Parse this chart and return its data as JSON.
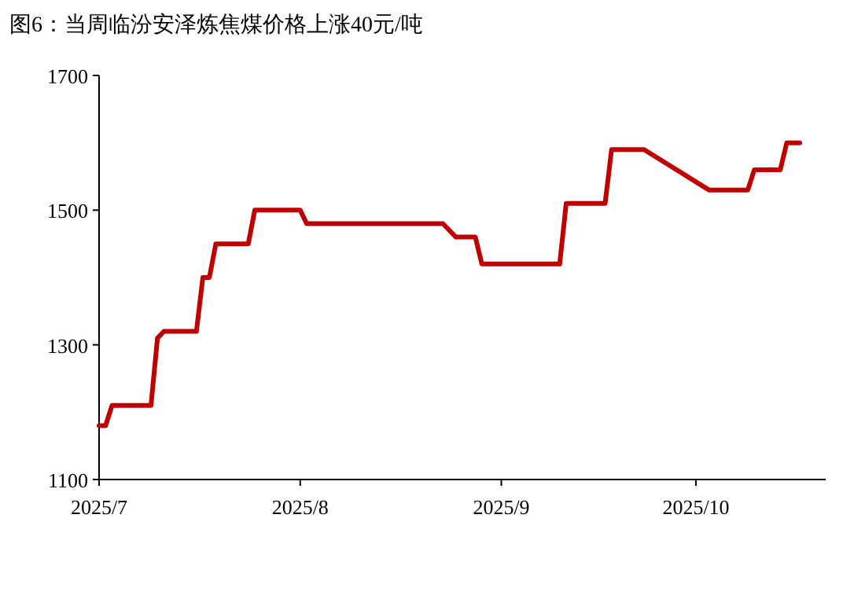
{
  "chart_data": {
    "type": "line",
    "title": "图6：当周临汾安泽炼焦煤价格上涨40元/吨",
    "x": [
      "2025-07-01",
      "2025-07-02",
      "2025-07-03",
      "2025-07-09",
      "2025-07-10",
      "2025-07-11",
      "2025-07-16",
      "2025-07-17",
      "2025-07-18",
      "2025-07-19",
      "2025-07-24",
      "2025-07-25",
      "2025-08-01",
      "2025-08-02",
      "2025-08-23",
      "2025-08-25",
      "2025-08-28",
      "2025-08-29",
      "2025-09-10",
      "2025-09-11",
      "2025-09-17",
      "2025-09-18",
      "2025-09-23",
      "2025-10-03",
      "2025-10-09",
      "2025-10-10",
      "2025-10-14",
      "2025-10-15",
      "2025-10-17"
    ],
    "series": [
      {
        "color": "#c00000",
        "values": [
          1180,
          1180,
          1210,
          1210,
          1310,
          1320,
          1320,
          1400,
          1400,
          1450,
          1450,
          1500,
          1500,
          1480,
          1480,
          1460,
          1460,
          1420,
          1420,
          1510,
          1510,
          1590,
          1590,
          1530,
          1530,
          1560,
          1560,
          1600,
          1600
        ]
      }
    ],
    "xlim": [
      "2025-07-01",
      "2025-10-21"
    ],
    "xticks": [
      {
        "value": "2025-07-01",
        "label": "2025/7"
      },
      {
        "value": "2025-08-01",
        "label": "2025/8"
      },
      {
        "value": "2025-09-01",
        "label": "2025/9"
      },
      {
        "value": "2025-10-01",
        "label": "2025/10"
      }
    ],
    "ylim": [
      1100,
      1700
    ],
    "yticks": [
      1100,
      1300,
      1500,
      1700
    ],
    "line_style": "solid"
  }
}
